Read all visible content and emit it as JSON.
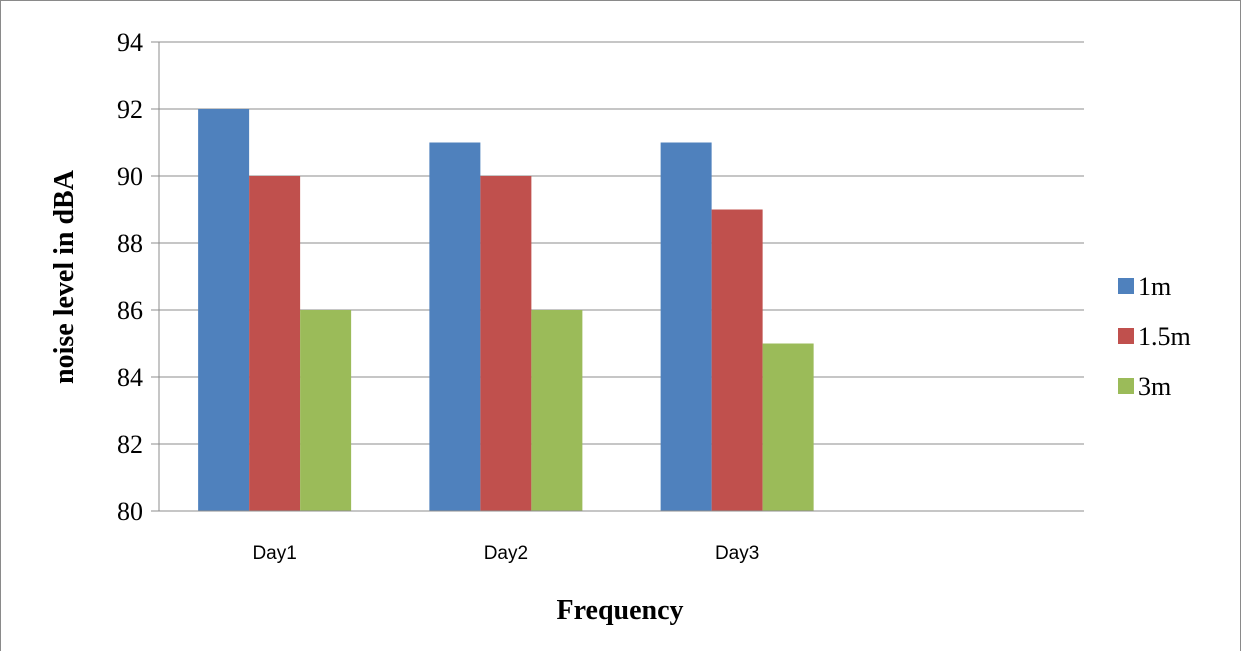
{
  "chart_data": {
    "type": "bar",
    "title": "",
    "xlabel": "Frequency",
    "ylabel": "noise level in dBA",
    "categories": [
      "Day1",
      "Day2",
      "Day3",
      ""
    ],
    "ylim": [
      80,
      94
    ],
    "yticks": [
      "80",
      "82",
      "84",
      "86",
      "88",
      "90",
      "92",
      "94"
    ],
    "grid": "horizontal",
    "legend_position": "right",
    "series": [
      {
        "name": "1m",
        "values": [
          92,
          91,
          91,
          null
        ],
        "color": "#4f81bd"
      },
      {
        "name": "1.5m",
        "values": [
          90,
          90,
          89,
          null
        ],
        "color": "#c0504d"
      },
      {
        "name": "3m",
        "values": [
          86,
          86,
          85,
          null
        ],
        "color": "#9bbb59"
      }
    ]
  }
}
